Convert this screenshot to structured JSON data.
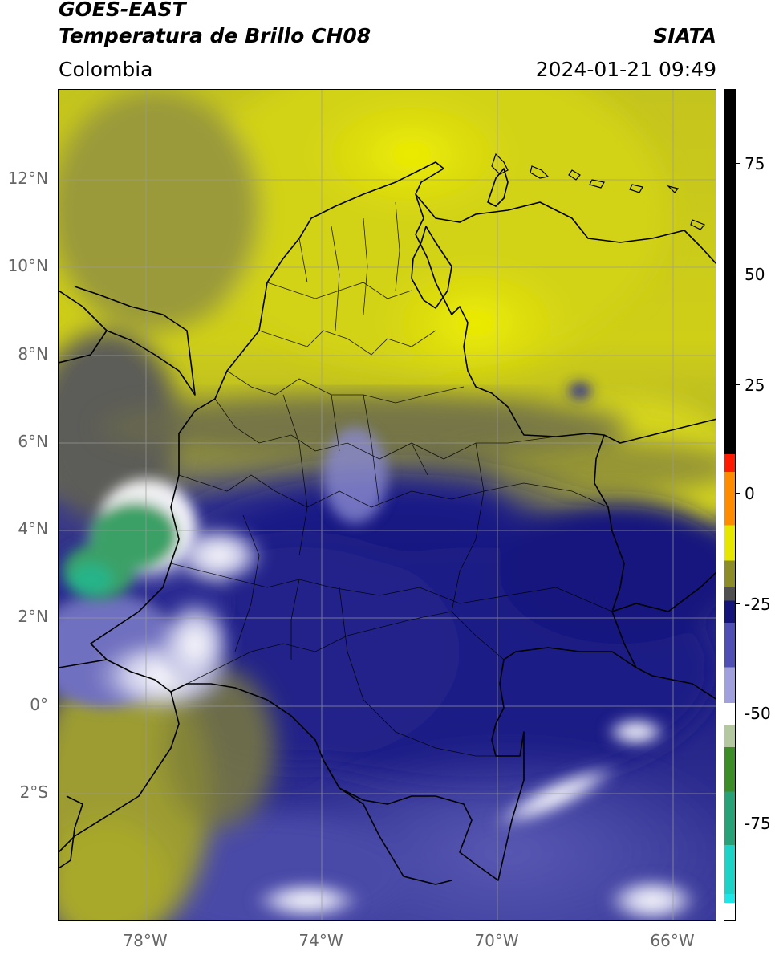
{
  "header": {
    "title_line1": "GOES-EAST",
    "title_line2": "Temperatura de Brillo CH08",
    "agency": "SIATA",
    "region": "Colombia",
    "datetime": "2024-01-21 09:49"
  },
  "map": {
    "lat_range": [
      -5.2,
      13.8
    ],
    "lon_range": [
      -80.0,
      -65.0
    ],
    "lat_ticks": [
      "12°N",
      "10°N",
      "8°N",
      "6°N",
      "4°N",
      "2°N",
      "0°",
      "2°S"
    ],
    "lon_ticks": [
      "78°W",
      "74°W",
      "70°W",
      "66°W"
    ],
    "field_description": "brightness temperature",
    "grid": true,
    "colors": {
      "background_warm": "#c8c81e",
      "warmest": "#f0f000",
      "mid_blue": "#1a1a8c",
      "light_blue": "#8080c8",
      "white_cloud": "#f0f0f8",
      "green_cloud": "#3ca060",
      "ocean_dark_olive": "#7d7d3c",
      "border_line": "#000000",
      "grid_line": "#9a9a9a"
    }
  },
  "colorbar": {
    "ticks": [
      "75",
      "50",
      "25",
      "0",
      "-25",
      "-50",
      "-75"
    ],
    "range": [
      -97,
      90
    ],
    "segments": [
      {
        "from": 90,
        "to": 8,
        "color": "#000000"
      },
      {
        "from": 8,
        "to": 4,
        "color": "#ff1a00"
      },
      {
        "from": 4,
        "to": -8,
        "color": "#ff8c00"
      },
      {
        "from": -8,
        "to": -16,
        "color": "#e6e600"
      },
      {
        "from": -16,
        "to": -22,
        "color": "#8c8c28"
      },
      {
        "from": -22,
        "to": -25,
        "color": "#505050"
      },
      {
        "from": -25,
        "to": -30,
        "color": "#14147a"
      },
      {
        "from": -30,
        "to": -40,
        "color": "#5050b4"
      },
      {
        "from": -40,
        "to": -48,
        "color": "#a0a0dc"
      },
      {
        "from": -48,
        "to": -53,
        "color": "#ffffff"
      },
      {
        "from": -53,
        "to": -58,
        "color": "#b4c8a0"
      },
      {
        "from": -58,
        "to": -68,
        "color": "#3c8c28"
      },
      {
        "from": -68,
        "to": -80,
        "color": "#28a078"
      },
      {
        "from": -80,
        "to": -91,
        "color": "#1ed2c8"
      },
      {
        "from": -91,
        "to": -93,
        "color": "#1ee6e6"
      },
      {
        "from": -93,
        "to": -97,
        "color": "#ffffff"
      }
    ]
  }
}
